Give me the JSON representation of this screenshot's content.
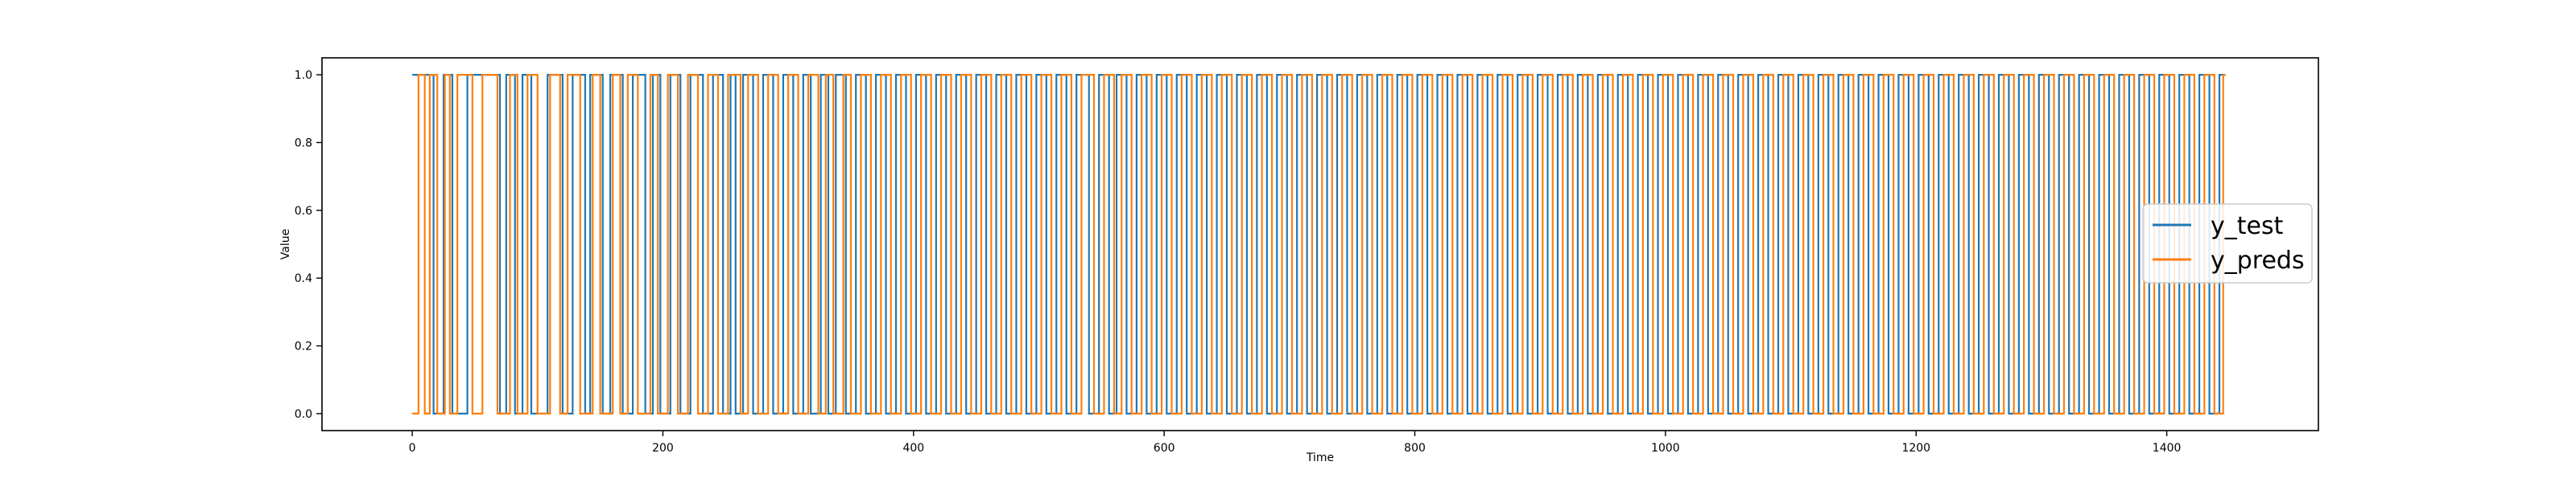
{
  "chart_data": {
    "type": "line",
    "title": "",
    "xlabel": "Time",
    "ylabel": "Value",
    "xlim": [
      -72,
      1521
    ],
    "ylim": [
      -0.05,
      1.05
    ],
    "xticks": [
      0,
      200,
      400,
      600,
      800,
      1000,
      1200,
      1400
    ],
    "yticks": [
      0.0,
      0.2,
      0.4,
      0.6,
      0.8,
      1.0
    ],
    "ytick_labels": [
      "0.0",
      "0.2",
      "0.4",
      "0.6",
      "0.8",
      "1.0"
    ],
    "xtick_labels": [
      "0",
      "200",
      "400",
      "600",
      "800",
      "1000",
      "1200",
      "1400"
    ],
    "grid": false,
    "legend_position": "center-right",
    "n_points": 1448,
    "step": "post",
    "series": [
      {
        "name": "y_test",
        "color": "#1f77b4",
        "start_value": 1,
        "switch_times": [
          17,
          25,
          32,
          44,
          70,
          75,
          82,
          88,
          95,
          108,
          120,
          128,
          138,
          142,
          152,
          158,
          168,
          176,
          186,
          192,
          198,
          206,
          214,
          222,
          232,
          240,
          248,
          254,
          258,
          264,
          272,
          280,
          288,
          296,
          304,
          312,
          318,
          326,
          332,
          338,
          346,
          354,
          362,
          370,
          378,
          386,
          394,
          402,
          410,
          418,
          426,
          434,
          442,
          450,
          458,
          466,
          474,
          482,
          490,
          498,
          506,
          514,
          522,
          530,
          540,
          548,
          556,
          562,
          570,
          578,
          586,
          594,
          602,
          610,
          618,
          626,
          634,
          642,
          650,
          658,
          666,
          674,
          682,
          690,
          698,
          706,
          714,
          722,
          730,
          738,
          746,
          754,
          762,
          770,
          778,
          786,
          794,
          802,
          810,
          818,
          826,
          834,
          842,
          850,
          858,
          866,
          874,
          882,
          890,
          898,
          906,
          914,
          922,
          930,
          938,
          946,
          954,
          962,
          970,
          978,
          986,
          994,
          1002,
          1010,
          1018,
          1026,
          1034,
          1042,
          1050,
          1058,
          1066,
          1074,
          1082,
          1090,
          1098,
          1106,
          1114,
          1122,
          1130,
          1138,
          1146,
          1154,
          1162,
          1170,
          1178,
          1186,
          1194,
          1202,
          1210,
          1218,
          1226,
          1234,
          1242,
          1250,
          1258,
          1266,
          1274,
          1282,
          1290,
          1298,
          1306,
          1314,
          1322,
          1330,
          1338,
          1346,
          1354,
          1362,
          1370,
          1378,
          1386,
          1394,
          1402,
          1410,
          1418,
          1426,
          1434,
          1442
        ]
      },
      {
        "name": "y_preds",
        "color": "#ff7f0e",
        "start_value": 0,
        "switch_times": [
          5,
          10,
          14,
          20,
          26,
          30,
          36,
          48,
          56,
          68,
          78,
          84,
          92,
          100,
          110,
          118,
          124,
          134,
          144,
          150,
          160,
          166,
          172,
          180,
          190,
          196,
          204,
          212,
          220,
          228,
          236,
          244,
          252,
          262,
          268,
          276,
          284,
          292,
          300,
          308,
          316,
          324,
          330,
          336,
          344,
          350,
          358,
          366,
          374,
          382,
          390,
          398,
          406,
          414,
          422,
          430,
          438,
          446,
          454,
          462,
          470,
          478,
          486,
          494,
          502,
          510,
          518,
          526,
          534,
          544,
          552,
          560,
          566,
          574,
          582,
          590,
          598,
          606,
          614,
          622,
          630,
          638,
          646,
          654,
          662,
          670,
          678,
          686,
          694,
          702,
          710,
          718,
          726,
          734,
          742,
          750,
          758,
          766,
          774,
          782,
          790,
          798,
          806,
          814,
          822,
          830,
          838,
          846,
          854,
          862,
          870,
          878,
          886,
          894,
          902,
          910,
          918,
          926,
          934,
          942,
          950,
          958,
          966,
          974,
          982,
          990,
          998,
          1006,
          1014,
          1022,
          1030,
          1038,
          1046,
          1054,
          1062,
          1070,
          1078,
          1086,
          1094,
          1102,
          1110,
          1118,
          1126,
          1134,
          1142,
          1150,
          1158,
          1166,
          1174,
          1182,
          1190,
          1198,
          1206,
          1214,
          1222,
          1230,
          1238,
          1246,
          1254,
          1262,
          1270,
          1278,
          1286,
          1294,
          1302,
          1310,
          1318,
          1326,
          1334,
          1342,
          1350,
          1358,
          1366,
          1374,
          1382,
          1390,
          1398,
          1406,
          1414,
          1422,
          1430,
          1438,
          1445
        ]
      }
    ]
  }
}
